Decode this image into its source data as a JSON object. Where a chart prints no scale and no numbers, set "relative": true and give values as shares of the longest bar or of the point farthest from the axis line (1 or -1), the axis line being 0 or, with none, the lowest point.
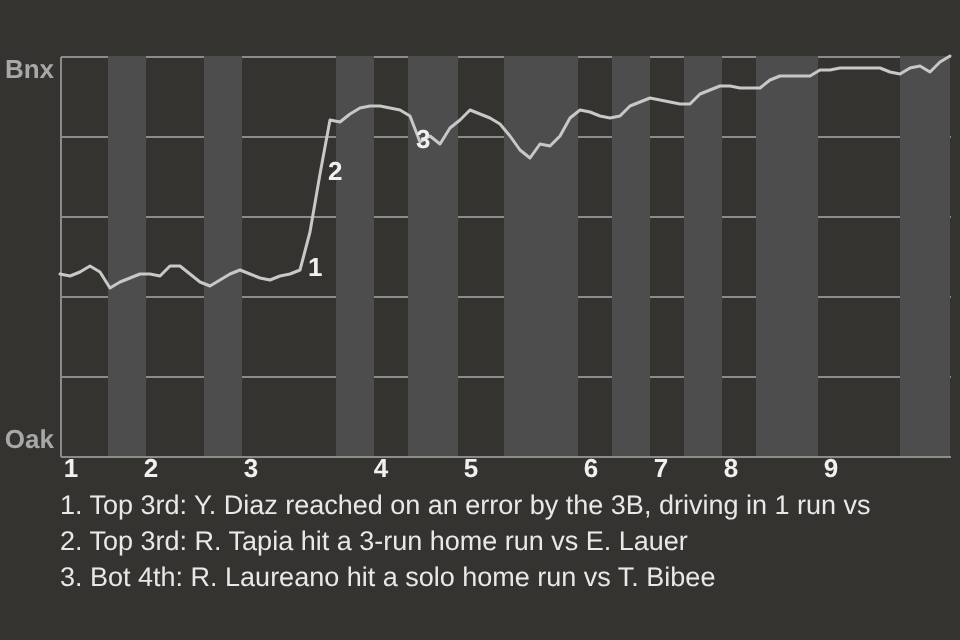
{
  "chart_data": {
    "type": "line",
    "relative": true,
    "categories": [
      null,
      "1",
      null,
      null,
      null,
      null,
      null,
      null,
      null,
      "2",
      null,
      null,
      null,
      null,
      null,
      null,
      null,
      null,
      null,
      "3",
      null,
      null,
      null,
      null,
      null,
      null,
      null,
      null,
      null,
      null,
      null,
      null,
      "4",
      null,
      null,
      null,
      null,
      null,
      null,
      null,
      null,
      "5",
      null,
      null,
      null,
      null,
      null,
      null,
      null,
      null,
      null,
      null,
      null,
      "6",
      null,
      null,
      null,
      null,
      null,
      null,
      "7",
      null,
      null,
      null,
      null,
      null,
      null,
      "8",
      null,
      null,
      null,
      null,
      null,
      null,
      null,
      null,
      null,
      "9",
      null,
      null,
      null,
      null,
      null,
      null,
      null,
      null,
      null,
      null,
      null,
      null
    ],
    "series": [
      {
        "color": "#c8c8c8",
        "values": [
          0.455,
          0.45,
          0.46,
          0.475,
          0.46,
          0.42,
          0.435,
          0.445,
          0.455,
          0.455,
          0.45,
          0.475,
          0.475,
          0.455,
          0.435,
          0.425,
          0.44,
          0.455,
          0.465,
          0.455,
          0.445,
          0.44,
          0.45,
          0.455,
          0.465,
          0.56,
          0.705,
          0.84,
          0.835,
          0.855,
          0.87,
          0.875,
          0.875,
          0.87,
          0.865,
          0.85,
          0.785,
          0.8,
          0.78,
          0.82,
          0.84,
          0.865,
          0.855,
          0.845,
          0.83,
          0.8,
          0.765,
          0.745,
          0.78,
          0.775,
          0.8,
          0.845,
          0.865,
          0.86,
          0.85,
          0.845,
          0.85,
          0.875,
          0.885,
          0.895,
          0.89,
          0.885,
          0.88,
          0.88,
          0.905,
          0.915,
          0.925,
          0.925,
          0.92,
          0.92,
          0.92,
          0.94,
          0.95,
          0.95,
          0.95,
          0.95,
          0.965,
          0.965,
          0.97,
          0.97,
          0.97,
          0.97,
          0.97,
          0.96,
          0.955,
          0.97,
          0.975,
          0.96,
          0.985,
          1
        ]
      }
    ],
    "grid": "y",
    "annotations": [
      "Bnx",
      "Oak",
      "1",
      "2",
      "3",
      "1. Top 3rd: Y. Diaz reached on an error by the 3B, driving in 1 run vs",
      "2. Top 3rd: R. Tapia hit a 3-run home run vs E. Lauer",
      "3. Bot 4th: R. Laureano hit a solo home run vs T. Bibee"
    ]
  }
}
